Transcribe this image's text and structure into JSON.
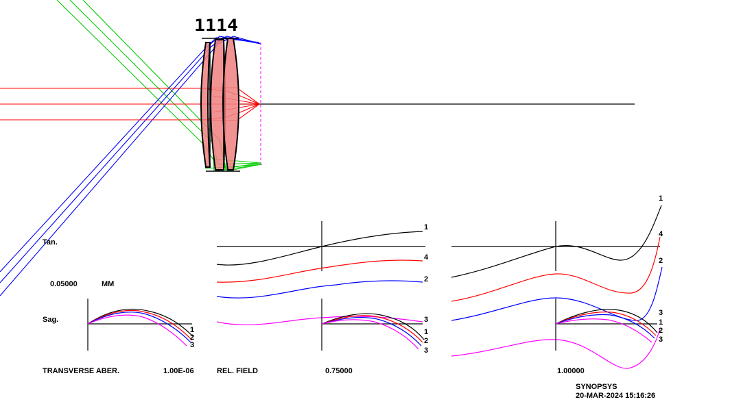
{
  "lens": {
    "surface_labels": "1114"
  },
  "colors": {
    "ray_red": "#ff0000",
    "ray_blue": "#0000ff",
    "ray_green": "#00cc00",
    "lens_fill": "#f08080",
    "pink": "#ff00ff",
    "black": "#000000"
  },
  "aberration_plot": {
    "tan_label": "Tan.",
    "sag_label": "Sag.",
    "scale_value": "0.05000",
    "scale_unit": "MM",
    "title": "TRANSVERSE ABER.",
    "wavelength_value": "1.00E-06",
    "rel_field_label": "REL. FIELD",
    "fields": [
      "0.75000",
      "1.00000"
    ],
    "curve_labels": {
      "tan_mid": [
        "1",
        "4",
        "2",
        "3"
      ],
      "tan_right": [
        "1",
        "4",
        "2"
      ],
      "sag_left": [
        "1",
        "2",
        "3"
      ],
      "sag_mid": [
        "3",
        "1",
        "2",
        "3"
      ],
      "sag_right": [
        "3",
        "1",
        "2",
        "3"
      ]
    }
  },
  "footer": {
    "program": "SYNOPSYS",
    "timestamp": "20-MAR-2024 15:16:26"
  }
}
